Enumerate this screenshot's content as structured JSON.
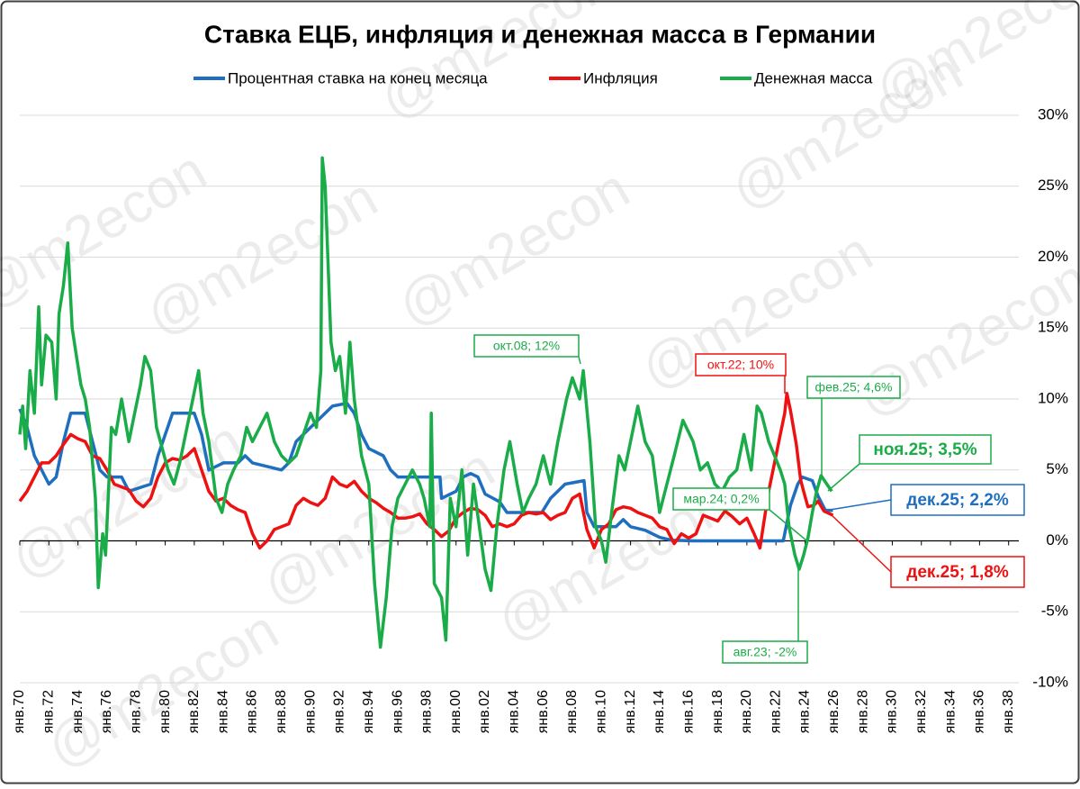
{
  "chart_data": {
    "type": "line",
    "title": "Ставка ЕЦБ, инфляция и денежная масса в Германии",
    "watermark": "@m2econ",
    "xlim": [
      1970,
      2038.7
    ],
    "ylim": [
      -10,
      30
    ],
    "grid": true,
    "legend": "top",
    "yticks": [
      {
        "value": -10,
        "label": "-10%"
      },
      {
        "value": -5,
        "label": "-5%"
      },
      {
        "value": 0,
        "label": "0%"
      },
      {
        "value": 5,
        "label": "5%"
      },
      {
        "value": 10,
        "label": "10%"
      },
      {
        "value": 15,
        "label": "15%"
      },
      {
        "value": 20,
        "label": "20%"
      },
      {
        "value": 25,
        "label": "25%"
      },
      {
        "value": 30,
        "label": "30%"
      }
    ],
    "xticks": [
      {
        "value": 1970,
        "label": "янв.70"
      },
      {
        "value": 1972,
        "label": "янв.72"
      },
      {
        "value": 1974,
        "label": "янв.74"
      },
      {
        "value": 1976,
        "label": "янв.76"
      },
      {
        "value": 1978,
        "label": "янв.78"
      },
      {
        "value": 1980,
        "label": "янв.80"
      },
      {
        "value": 1982,
        "label": "янв.82"
      },
      {
        "value": 1984,
        "label": "янв.84"
      },
      {
        "value": 1986,
        "label": "янв.86"
      },
      {
        "value": 1988,
        "label": "янв.88"
      },
      {
        "value": 1990,
        "label": "янв.90"
      },
      {
        "value": 1992,
        "label": "янв.92"
      },
      {
        "value": 1994,
        "label": "янв.94"
      },
      {
        "value": 1996,
        "label": "янв.96"
      },
      {
        "value": 1998,
        "label": "янв.98"
      },
      {
        "value": 2000,
        "label": "янв.00"
      },
      {
        "value": 2002,
        "label": "янв.02"
      },
      {
        "value": 2004,
        "label": "янв.04"
      },
      {
        "value": 2006,
        "label": "янв.06"
      },
      {
        "value": 2008,
        "label": "янв.08"
      },
      {
        "value": 2010,
        "label": "янв.10"
      },
      {
        "value": 2012,
        "label": "янв.12"
      },
      {
        "value": 2014,
        "label": "янв.14"
      },
      {
        "value": 2016,
        "label": "янв.16"
      },
      {
        "value": 2018,
        "label": "янв.18"
      },
      {
        "value": 2020,
        "label": "янв.20"
      },
      {
        "value": 2022,
        "label": "янв.22"
      },
      {
        "value": 2024,
        "label": "янв.24"
      },
      {
        "value": 2026,
        "label": "янв.26"
      },
      {
        "value": 2028,
        "label": "янв.28"
      },
      {
        "value": 2030,
        "label": "янв.30"
      },
      {
        "value": 2032,
        "label": "янв.32"
      },
      {
        "value": 2034,
        "label": "янв.34"
      },
      {
        "value": 2036,
        "label": "янв.36"
      },
      {
        "value": 2038,
        "label": "янв.38"
      }
    ],
    "series": [
      {
        "name": "Процентная ставка на конец месяца",
        "color": "#1f6fc0",
        "x": [
          1970,
          1970.5,
          1971,
          1972,
          1972.5,
          1973,
          1973.5,
          1974.5,
          1975,
          1975.5,
          1976,
          1977,
          1977.5,
          1979,
          1979.5,
          1980,
          1980.5,
          1982,
          1982.5,
          1983,
          1984,
          1985,
          1985.5,
          1986,
          1988,
          1988.5,
          1989,
          1990,
          1991,
          1991.5,
          1992.5,
          1993,
          1993.5,
          1994,
          1995,
          1995.5,
          1996,
          1998.9,
          1999,
          2000,
          2000.5,
          2001,
          2001.5,
          2002,
          2003,
          2003.5,
          2005.9,
          2006.5,
          2007,
          2007.5,
          2008.8,
          2009,
          2009.5,
          2011,
          2011.5,
          2012,
          2013,
          2014,
          2014.8,
          2016.2,
          2022.5,
          2023,
          2023.5,
          2023.8,
          2024.5,
          2024.9,
          2025.4,
          2025.92
        ],
        "values": [
          9.3,
          8,
          6,
          4,
          4.5,
          7,
          9,
          9,
          7,
          5,
          4.5,
          4.5,
          3.5,
          4,
          6,
          7.5,
          9,
          9,
          7.5,
          5,
          5.5,
          5.5,
          6,
          5.5,
          5,
          5.5,
          7,
          8,
          9,
          9.5,
          9.7,
          9,
          7.5,
          6.5,
          6,
          5,
          4.5,
          4.5,
          3,
          3.5,
          4.5,
          4.75,
          4.5,
          3.3,
          2.75,
          2,
          2,
          3,
          3.5,
          4,
          4.25,
          2,
          1,
          1,
          1.5,
          1,
          0.75,
          0.25,
          0.05,
          0,
          0,
          2.5,
          4,
          4.5,
          4.25,
          3.15,
          2.15,
          2.15
        ]
      },
      {
        "name": "Инфляция",
        "color": "#ee1111",
        "x": [
          1970,
          1970.5,
          1971,
          1971.5,
          1972,
          1972.5,
          1973,
          1973.5,
          1974,
          1974.5,
          1975,
          1975.5,
          1976,
          1976.5,
          1977,
          1977.5,
          1978,
          1978.5,
          1979,
          1979.5,
          1980,
          1980.5,
          1981,
          1981.5,
          1982,
          1982.5,
          1983,
          1983.5,
          1984,
          1984.5,
          1985,
          1985.5,
          1986,
          1986.5,
          1987,
          1987.5,
          1988,
          1988.5,
          1989,
          1989.5,
          1990,
          1990.5,
          1991,
          1991.5,
          1992,
          1992.5,
          1993,
          1993.5,
          1994,
          1994.5,
          1995,
          1995.5,
          1996,
          1996.5,
          1997,
          1997.5,
          1998,
          1998.5,
          1999,
          1999.5,
          2000,
          2000.5,
          2001,
          2001.5,
          2002,
          2002.5,
          2003,
          2003.5,
          2004,
          2004.5,
          2005,
          2005.5,
          2006,
          2006.5,
          2007,
          2007.5,
          2008,
          2008.5,
          2009,
          2009.5,
          2010,
          2010.5,
          2011,
          2011.5,
          2012,
          2012.5,
          2013,
          2013.5,
          2014,
          2014.5,
          2015,
          2015.5,
          2016,
          2016.5,
          2017,
          2017.5,
          2018,
          2018.5,
          2019,
          2019.5,
          2020,
          2020.5,
          2020.9,
          2021.2,
          2021.5,
          2021.9,
          2022.3,
          2022.6,
          2022.75,
          2023,
          2023.4,
          2023.7,
          2023.9,
          2024.2,
          2024.6,
          2024.9,
          2025.3,
          2025.92
        ],
        "values": [
          2.8,
          3.5,
          4.5,
          5.5,
          5.5,
          6,
          6.8,
          7.5,
          7.2,
          7,
          6,
          5.8,
          5,
          4,
          3.8,
          3.6,
          2.8,
          2.4,
          3,
          4.5,
          5.5,
          5.8,
          5.7,
          6,
          6.5,
          5,
          3.5,
          2.8,
          3,
          2.5,
          2.2,
          2,
          0.5,
          -0.5,
          0,
          0.8,
          1,
          1.2,
          2.5,
          3,
          2.7,
          2.5,
          3,
          4.5,
          4,
          3.8,
          4.2,
          3.5,
          3,
          2.7,
          2.3,
          2,
          1.6,
          1.6,
          1.7,
          1.9,
          1.2,
          0.8,
          0.3,
          0.7,
          1.6,
          2,
          2.3,
          2.2,
          1.8,
          1,
          1.2,
          1,
          1.2,
          1.8,
          2,
          1.9,
          2,
          1.5,
          1.8,
          2,
          3,
          3.3,
          0.8,
          -0.5,
          0.8,
          1.2,
          2.2,
          2.4,
          2.3,
          2,
          1.8,
          1.6,
          1,
          0.8,
          -0.2,
          0.5,
          0.2,
          0.5,
          1.8,
          1.6,
          1.4,
          2.1,
          1.7,
          1.2,
          1.6,
          0.5,
          -0.5,
          1.5,
          3.5,
          5.5,
          7.5,
          9,
          10.4,
          9.2,
          6.8,
          4.3,
          3.5,
          2.4,
          2.5,
          2.8,
          2.1,
          1.8
        ]
      },
      {
        "name": "Денежная масса",
        "color": "#1aac48",
        "x": [
          1970,
          1970.2,
          1970.4,
          1970.7,
          1971,
          1971.3,
          1971.5,
          1971.8,
          1972.2,
          1972.5,
          1972.7,
          1973,
          1973.3,
          1973.6,
          1973.9,
          1974.2,
          1974.5,
          1974.8,
          1975.2,
          1975.4,
          1975.7,
          1975.9,
          1976.3,
          1976.6,
          1977,
          1977.5,
          1977.9,
          1978.3,
          1978.6,
          1979,
          1979.4,
          1979.8,
          1980.2,
          1980.6,
          1981,
          1981.5,
          1981.9,
          1982.3,
          1982.6,
          1983,
          1983.5,
          1983.9,
          1984.3,
          1984.7,
          1985.2,
          1985.6,
          1986,
          1986.5,
          1987,
          1987.5,
          1988,
          1988.5,
          1989,
          1989.5,
          1990,
          1990.4,
          1990.7,
          1990.8,
          1991,
          1991.4,
          1991.7,
          1992,
          1992.4,
          1992.7,
          1993,
          1993.5,
          1994,
          1994.4,
          1994.8,
          1995.2,
          1995.6,
          1996,
          1996.5,
          1997,
          1997.5,
          1997.8,
          1998.2,
          1998.3,
          1998.5,
          1999,
          1999.3,
          1999.6,
          2000,
          2000.4,
          2000.8,
          2001.2,
          2001.6,
          2002,
          2002.4,
          2002.8,
          2003.3,
          2003.7,
          2004.2,
          2004.6,
          2005,
          2005.5,
          2006,
          2006.5,
          2007,
          2007.6,
          2008,
          2008.5,
          2008.75,
          2009.2,
          2009.6,
          2010,
          2010.3,
          2010.7,
          2011.2,
          2011.6,
          2012,
          2012.5,
          2013,
          2013.5,
          2014,
          2014.5,
          2015,
          2015.6,
          2016.3,
          2016.8,
          2017.3,
          2017.8,
          2018.3,
          2018.8,
          2019.3,
          2019.8,
          2020.3,
          2020.7,
          2021,
          2021.5,
          2021.9,
          2022.3,
          2022.6,
          2022.9,
          2023.3,
          2023.6,
          2023.9,
          2024.2,
          2024.5,
          2024.8,
          2025.1,
          2025.5,
          2025.83
        ],
        "values": [
          7.5,
          9.5,
          6.5,
          12,
          9,
          16.5,
          11,
          14.5,
          14,
          10,
          16,
          18,
          21,
          15,
          13,
          11,
          10,
          8,
          3,
          -3.3,
          0.5,
          -1,
          8,
          7.5,
          10,
          7,
          9,
          11,
          13,
          12,
          8,
          6.5,
          5,
          4,
          5.5,
          8,
          10,
          12,
          9,
          7,
          3,
          2,
          4,
          5,
          6,
          8,
          7,
          8,
          9,
          7,
          6,
          5.5,
          6,
          7.5,
          9,
          8,
          12,
          27,
          25,
          14,
          12,
          13,
          9,
          14,
          10,
          6,
          4,
          -3,
          -7.5,
          -4,
          1,
          3,
          4,
          5,
          4,
          3,
          1,
          9,
          -3,
          -4,
          -7,
          3,
          1,
          5,
          -1,
          4,
          1,
          -2,
          -3.5,
          1,
          5,
          7,
          4,
          2,
          3,
          4,
          6,
          4,
          7,
          10,
          11.5,
          10,
          12,
          7,
          1,
          0,
          -1.5,
          2,
          6,
          5,
          7,
          9.5,
          7,
          6,
          2,
          4,
          6,
          8.5,
          7,
          5,
          5.5,
          4,
          3.5,
          4.5,
          5,
          7.5,
          5,
          9.5,
          9,
          7,
          6,
          5,
          4,
          1,
          -1,
          -2,
          -1,
          0.2,
          2,
          3.5,
          4.6,
          4,
          3.5
        ]
      }
    ],
    "annotations": [
      {
        "text": "окт.08; 12%",
        "color": "#1aac48"
      },
      {
        "text": "окт.22; 10%",
        "color": "#ee1111"
      },
      {
        "text": "фев.25; 4,6%",
        "color": "#1aac48"
      },
      {
        "text": "ноя.25; 3,5%",
        "color": "#1aac48"
      },
      {
        "text": "дек.25; 2,2%",
        "color": "#1f6fc0"
      },
      {
        "text": "мар.24; 0,2%",
        "color": "#1aac48"
      },
      {
        "text": "дек.25; 1,8%",
        "color": "#ee1111"
      },
      {
        "text": "авг.23; -2%",
        "color": "#1aac48"
      }
    ]
  }
}
